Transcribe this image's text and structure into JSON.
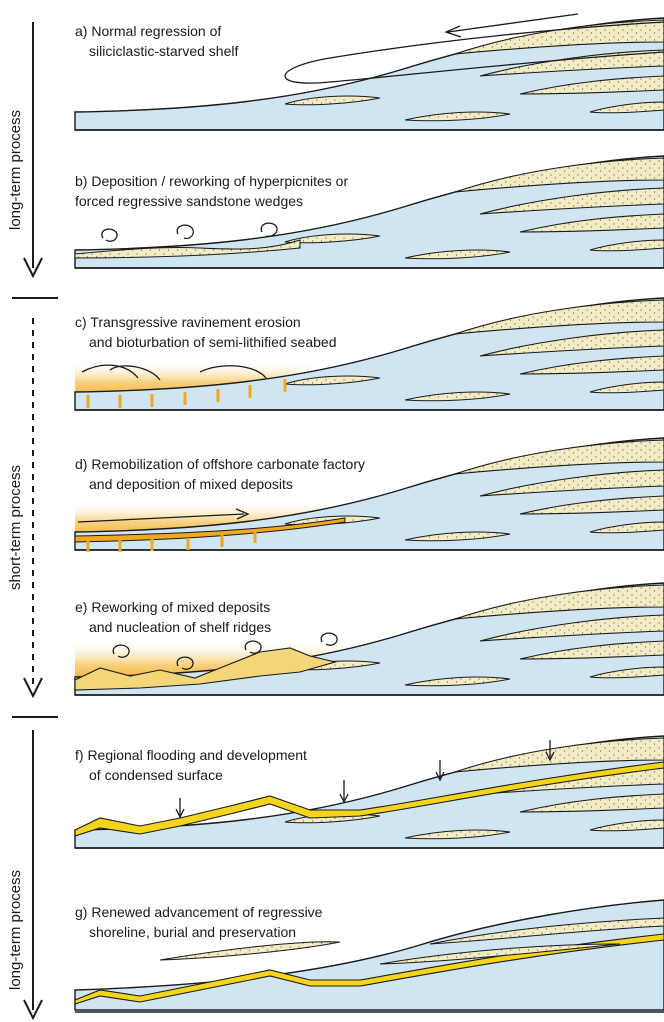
{
  "side_labels": {
    "top": "long-term process",
    "middle": "short-term process",
    "bottom": "long-term process"
  },
  "panels": [
    {
      "id": "a",
      "line1": "a) Normal regression of",
      "line2": "siliciclastic-starved shelf"
    },
    {
      "id": "b",
      "line1": "b) Deposition / reworking of hyperpicnites or",
      "line2": "forced regressive sandstone wedges"
    },
    {
      "id": "c",
      "line1": "c) Transgressive ravinement erosion",
      "line2": "and bioturbation of semi-lithified seabed"
    },
    {
      "id": "d",
      "line1": "d) Remobilization of offshore carbonate factory",
      "line2": "and deposition of mixed deposits"
    },
    {
      "id": "e",
      "line1": "e) Reworking of mixed deposits",
      "line2": "and nucleation of shelf ridges"
    },
    {
      "id": "f",
      "line1": "f) Regional flooding and development",
      "line2": "of condensed surface"
    },
    {
      "id": "g",
      "line1": "g) Renewed advancement of regressive",
      "line2": "shoreline, burial and preservation"
    }
  ],
  "colors": {
    "shelf_water": "#cfe6f2",
    "sand": "#f3ebc4",
    "carbonate_orange": "#f2a81c",
    "condensed_yellow": "#f5d51c",
    "outline": "#1a1a1a"
  }
}
